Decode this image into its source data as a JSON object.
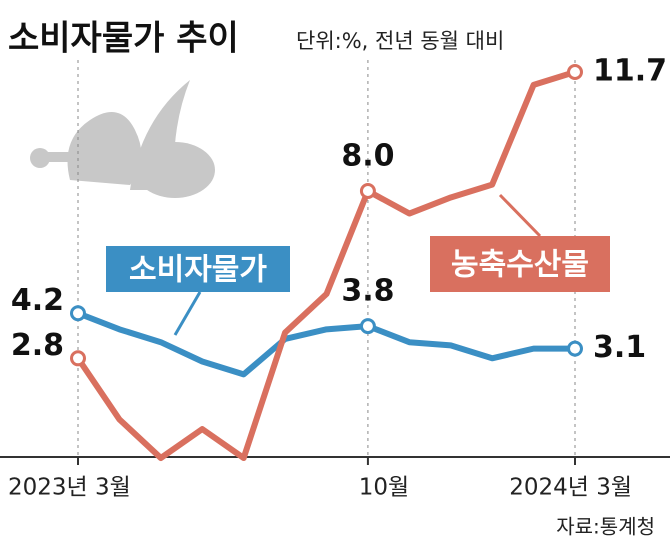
{
  "chart_data": {
    "type": "line",
    "title": "소비자물가 추이",
    "subtitle": "단위:%, 전년 동월 대비",
    "source": "자료:통계청",
    "categories": [
      "2023년 3월",
      null,
      null,
      null,
      null,
      null,
      null,
      "10월",
      null,
      null,
      null,
      null,
      "2024년 3월"
    ],
    "series": [
      {
        "name": "소비자물가",
        "color": "#3b8fc4",
        "values": [
          4.2,
          3.7,
          3.3,
          2.7,
          2.3,
          3.4,
          3.7,
          3.8,
          3.3,
          3.2,
          2.8,
          3.1,
          3.1
        ],
        "value_labels": [
          "4.2",
          null,
          null,
          null,
          null,
          null,
          null,
          "3.8",
          null,
          null,
          null,
          null,
          "3.1"
        ]
      },
      {
        "name": "농축수산물",
        "color": "#d9705f",
        "values": [
          2.8,
          0.9,
          -0.3,
          0.6,
          -0.3,
          3.6,
          4.8,
          8.0,
          7.3,
          7.8,
          8.2,
          11.3,
          11.7
        ],
        "value_labels": [
          "2.8",
          null,
          null,
          null,
          null,
          null,
          null,
          "8.0",
          null,
          null,
          null,
          null,
          "11.7"
        ]
      }
    ]
  }
}
